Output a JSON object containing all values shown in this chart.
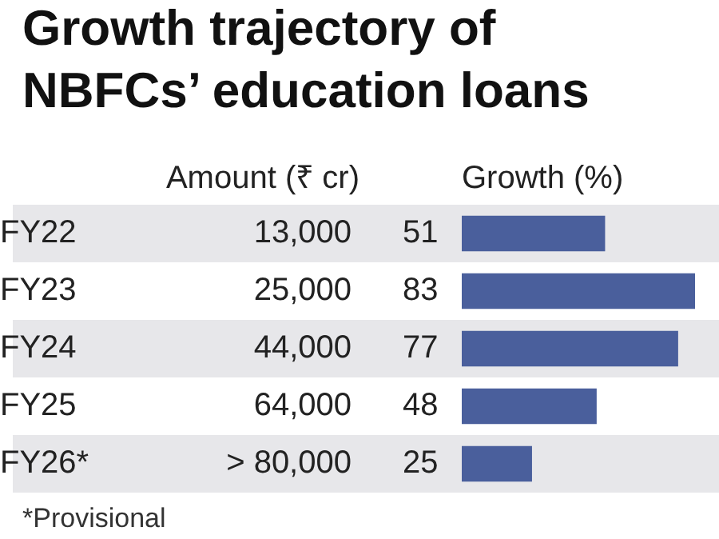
{
  "chart_data": {
    "type": "bar",
    "orientation": "horizontal",
    "title": "Growth trajectory of NBFCs’ education loans",
    "xlabel": "Growth (%)",
    "categories": [
      "FY22",
      "FY23",
      "FY24",
      "FY25",
      "FY26*"
    ],
    "values": [
      51,
      83,
      77,
      48,
      25
    ],
    "color": "#4a5f9c",
    "data_labels": true,
    "grid": false,
    "legend": false,
    "tick_labels": "y",
    "annotations": [
      "Amount (₹ cr)",
      "13,000",
      "25,000",
      "44,000",
      "64,000",
      "> 80,000",
      "*Provisional"
    ]
  }
}
